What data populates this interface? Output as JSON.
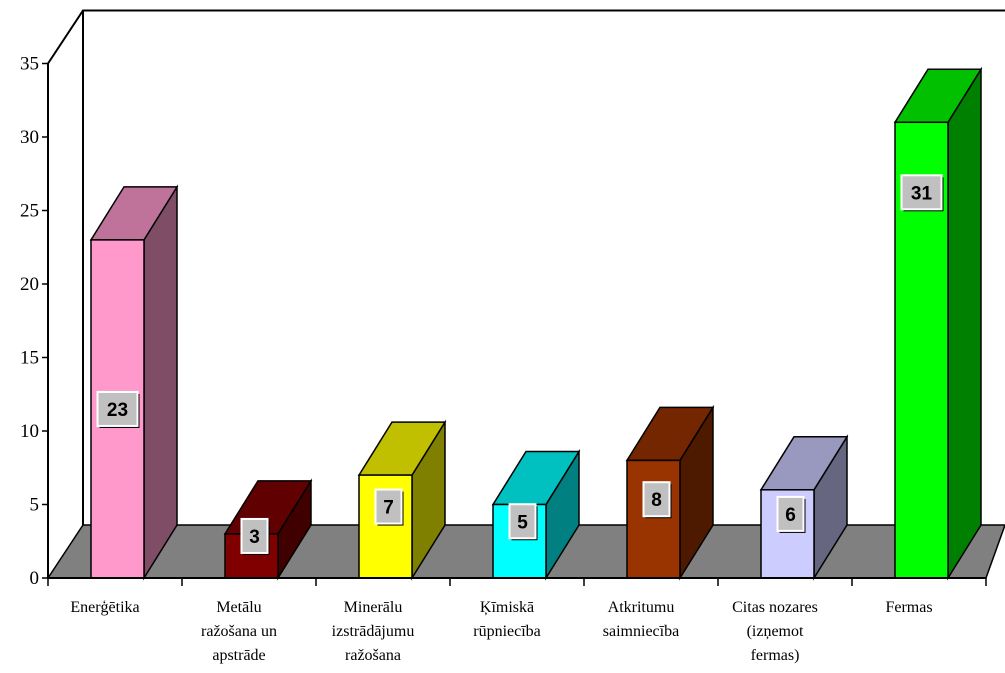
{
  "chart_data": {
    "type": "bar",
    "title": "",
    "xlabel": "",
    "ylabel": "",
    "ylim": [
      0,
      35
    ],
    "yticks": [
      0,
      5,
      10,
      15,
      20,
      25,
      30,
      35
    ],
    "three_d": true,
    "grid": false,
    "legend": "none",
    "categories": [
      [
        "Enerģētika"
      ],
      [
        "Metālu",
        "ražošana un",
        "apstrāde"
      ],
      [
        "Minerālu",
        "izstrādājumu",
        "ražošana"
      ],
      [
        "Ķīmiskā",
        "rūpniecība"
      ],
      [
        "Atkritumu",
        "saimniecība"
      ],
      [
        "Citas nozares",
        "(izņemot",
        "fermas)"
      ],
      [
        "Fermas"
      ]
    ],
    "values": [
      23,
      3,
      7,
      5,
      8,
      6,
      31
    ],
    "data_labels": [
      "23",
      "3",
      "7",
      "5",
      "8",
      "6",
      "31"
    ],
    "colors": [
      {
        "front": "#FF99CC",
        "top": "#C0739A",
        "side": "#804D66"
      },
      {
        "front": "#800000",
        "top": "#600000",
        "side": "#400000"
      },
      {
        "front": "#FFFF00",
        "top": "#C0C000",
        "side": "#808000"
      },
      {
        "front": "#00FFFF",
        "top": "#00C0C0",
        "side": "#008080"
      },
      {
        "front": "#993300",
        "top": "#732600",
        "side": "#4D1A00"
      },
      {
        "front": "#CCCCFF",
        "top": "#9999C0",
        "side": "#666680"
      },
      {
        "front": "#00FF00",
        "top": "#00C000",
        "side": "#008000"
      }
    ],
    "floor_color": "#808080",
    "label_box_color": "#C0C0C0"
  }
}
